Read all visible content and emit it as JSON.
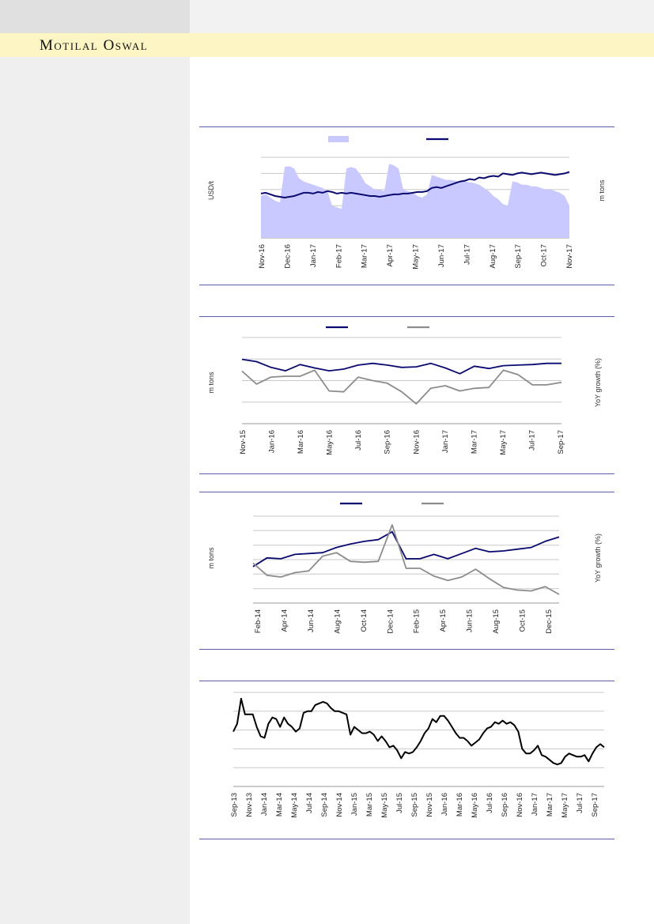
{
  "brand": {
    "name": "Motilal Oswal"
  },
  "chart_data": [
    {
      "type": "line",
      "subtype": "area+line",
      "xlabels": [
        "Nov-16",
        "Dec-16",
        "Jan-17",
        "Feb-17",
        "Mar-17",
        "Apr-17",
        "May-17",
        "Jun-17",
        "Jul-17",
        "Aug-17",
        "Sep-17",
        "Oct-17",
        "Nov-17"
      ],
      "ylabel_left": "USD/t",
      "ylabel_right": "m tons",
      "series": [
        {
          "name": "",
          "kind": "area",
          "color": "#c9c9ff",
          "values": [
            2.6,
            2.7,
            2.5,
            2.3,
            2.2,
            4.4,
            4.45,
            4.3,
            3.7,
            3.5,
            3.4,
            3.3,
            3.2,
            3.1,
            2.9,
            2.0,
            1.9,
            1.8,
            4.3,
            4.4,
            4.3,
            3.9,
            3.4,
            3.2,
            3.0,
            3.0,
            2.9,
            4.6,
            4.5,
            4.3,
            3.0,
            2.9,
            2.8,
            2.6,
            2.5,
            2.7,
            3.9,
            3.8,
            3.7,
            3.6,
            3.6,
            3.55,
            3.5,
            3.5,
            3.45,
            3.4,
            3.3,
            3.1,
            2.9,
            2.6,
            2.4,
            2.1,
            2.0,
            3.5,
            3.45,
            3.3,
            3.3,
            3.2,
            3.2,
            3.1,
            3.0,
            3.0,
            2.9,
            2.8,
            2.6,
            2.0
          ]
        },
        {
          "name": "",
          "kind": "line",
          "color": "#0a0a70",
          "values": [
            55,
            56,
            54,
            52,
            51,
            50,
            51,
            52,
            54,
            56,
            56,
            55,
            57,
            56,
            58,
            57,
            55,
            56,
            55,
            56,
            55,
            54,
            53,
            52,
            52,
            51,
            52,
            53,
            54,
            54,
            55,
            55,
            56,
            57,
            57,
            58,
            62,
            63,
            62,
            64,
            66,
            68,
            70,
            71,
            73,
            72,
            75,
            74,
            76,
            77,
            76,
            80,
            79,
            78,
            80,
            81,
            80,
            79,
            80,
            81,
            80,
            79,
            78,
            79,
            80,
            82
          ]
        }
      ],
      "ylim": [
        0,
        100
      ],
      "grid": true
    },
    {
      "type": "line",
      "xlabels": [
        "Nov-15",
        "Jan-16",
        "Mar-16",
        "May-16",
        "Jul-16",
        "Sep-16",
        "Nov-16",
        "Jan-17",
        "Mar-17",
        "May-17",
        "Jul-17",
        "Sep-17"
      ],
      "ylabel_left": "m tons",
      "ylabel_right": "YoY growth (%)",
      "series": [
        {
          "name": "",
          "color": "#0a0a70",
          "values": [
            62,
            58,
            48,
            42,
            53,
            47,
            42,
            45,
            52,
            55,
            52,
            48,
            49,
            55,
            47,
            37,
            50,
            46,
            51,
            52,
            53,
            55,
            55
          ]
        },
        {
          "name": "",
          "color": "#8c8c8c",
          "values": [
            41,
            26,
            34,
            35,
            35,
            42,
            18,
            17,
            34,
            30,
            27,
            17,
            3,
            21,
            24,
            18,
            21,
            22,
            42,
            37,
            25,
            25,
            28
          ]
        }
      ],
      "grid": true
    },
    {
      "type": "line",
      "xlabels": [
        "Feb-14",
        "Apr-14",
        "Jun-14",
        "Aug-14",
        "Oct-14",
        "Dec-14",
        "Feb-15",
        "Apr-15",
        "Jun-15",
        "Aug-15",
        "Oct-15",
        "Dec-15"
      ],
      "ylabel_left": "m tons",
      "ylabel_right": "YoY growth (%)",
      "series": [
        {
          "name": "",
          "color": "#0a0a70",
          "values": [
            22,
            32,
            31,
            36,
            37,
            38,
            44,
            48,
            51,
            53,
            62,
            31,
            31,
            36,
            31,
            37,
            43,
            39,
            40,
            42,
            44,
            51,
            56
          ]
        },
        {
          "name": "",
          "color": "#8c8c8c",
          "values": [
            36,
            22,
            20,
            25,
            27,
            44,
            48,
            38,
            37,
            38,
            80,
            30,
            30,
            21,
            16,
            20,
            29,
            18,
            8,
            5,
            4,
            9,
            0
          ]
        }
      ],
      "grid": true
    },
    {
      "type": "line",
      "xlabels": [
        "Sep-13",
        "Nov-13",
        "Jan-14",
        "Mar-14",
        "May-14",
        "Jul-14",
        "Sep-14",
        "Nov-14",
        "Jan-15",
        "Mar-15",
        "May-15",
        "Jul-15",
        "Sep-15",
        "Nov-15",
        "Jan-16",
        "Mar-16",
        "May-16",
        "Jul-16",
        "Sep-16",
        "Nov-16",
        "Jan-17",
        "Mar-17",
        "May-17",
        "Jul-17",
        "Sep-17"
      ],
      "series": [
        {
          "name": "",
          "color": "#000000",
          "values": [
            55,
            60,
            76,
            66,
            66,
            66,
            58,
            52,
            51,
            60,
            64,
            63,
            58,
            64,
            60,
            58,
            55,
            57,
            67,
            68,
            68,
            72,
            73,
            74,
            73,
            70,
            68,
            68,
            67,
            66,
            53,
            58,
            56,
            54,
            54,
            55,
            53,
            49,
            52,
            49,
            45,
            46,
            43,
            38,
            42,
            41,
            42,
            45,
            49,
            54,
            57,
            63,
            61,
            65,
            65,
            62,
            58,
            54,
            51,
            51,
            49,
            46,
            48,
            50,
            54,
            57,
            58,
            61,
            60,
            62,
            60,
            61,
            59,
            55,
            44,
            41,
            41,
            43,
            46,
            40,
            39,
            37,
            35,
            34,
            35,
            39,
            41,
            40,
            39,
            39,
            40,
            36,
            41,
            45,
            47,
            45
          ]
        }
      ],
      "grid": true
    }
  ]
}
